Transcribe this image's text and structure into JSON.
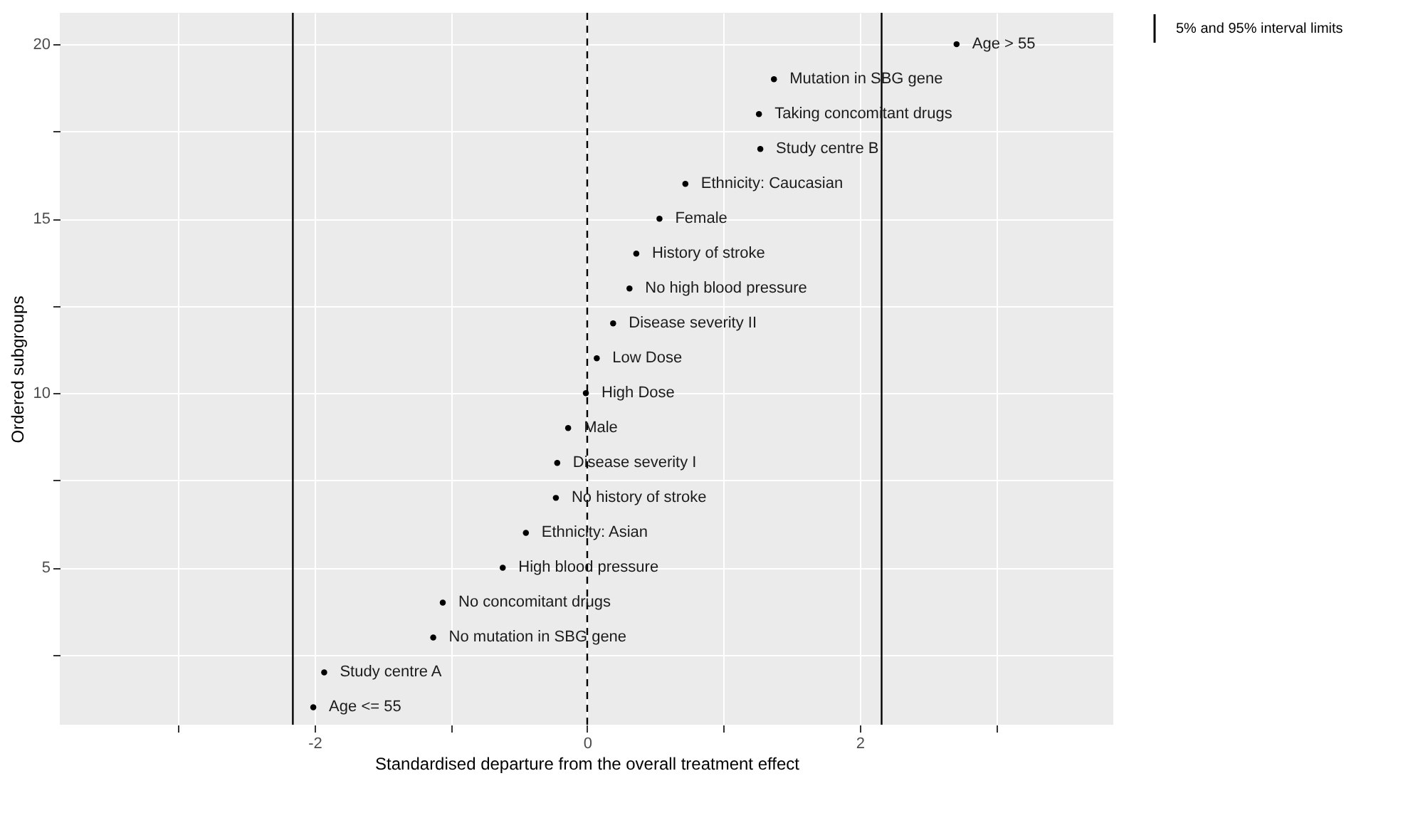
{
  "chart_data": {
    "type": "scatter",
    "xlabel": "Standardised departure from the overall treatment effect",
    "ylabel": "Ordered subgroups",
    "x": [
      -2.01,
      -1.93,
      -1.13,
      -1.06,
      -0.62,
      -0.45,
      -0.23,
      -0.22,
      -0.14,
      -0.01,
      0.07,
      0.19,
      0.31,
      0.36,
      0.53,
      0.72,
      1.27,
      1.26,
      1.37,
      2.71
    ],
    "series": [
      {
        "color": "#000000",
        "values": [
          1,
          2,
          3,
          4,
          5,
          6,
          7,
          8,
          9,
          10,
          11,
          12,
          13,
          14,
          15,
          16,
          17,
          18,
          19,
          20
        ]
      }
    ],
    "xlim": [
      -3.87,
      3.86
    ],
    "xticks": [
      {
        "value": -3,
        "label": null
      },
      -2,
      {
        "value": -1,
        "label": null
      },
      0,
      {
        "value": 1,
        "label": null
      },
      2,
      {
        "value": 3,
        "label": null
      }
    ],
    "ylim": [
      0.5,
      20.9
    ],
    "yticks": [
      {
        "value": 2.5,
        "label": null
      },
      5,
      {
        "value": 7.5,
        "label": null
      },
      10,
      {
        "value": 12.5,
        "label": null
      },
      15,
      {
        "value": 17.5,
        "label": null
      },
      20
    ],
    "grid": true,
    "marker": "circle",
    "legend": "right",
    "ref_lines": [
      {
        "axis": "x",
        "value": 0,
        "line_style": "dashed",
        "color": "#000000"
      },
      {
        "axis": "x",
        "value": -2.16,
        "label": "5% and 95% interval limits",
        "color": "#000000",
        "line_style": "solid"
      },
      {
        "axis": "x",
        "value": 2.16,
        "color": "#000000",
        "line_style": "solid"
      }
    ],
    "annotations": [
      {
        "text": "Age <= 55",
        "x": -2.01,
        "y": 1
      },
      {
        "text": "Study centre A",
        "x": -1.93,
        "y": 2
      },
      {
        "text": "No mutation in SBG gene",
        "x": -1.13,
        "y": 3
      },
      {
        "text": "No concomitant drugs",
        "x": -1.06,
        "y": 4
      },
      {
        "text": "High blood pressure",
        "x": -0.62,
        "y": 5
      },
      {
        "text": "Ethnicity: Asian",
        "x": -0.45,
        "y": 6
      },
      {
        "text": "No history of stroke",
        "x": -0.23,
        "y": 7
      },
      {
        "text": "Disease severity I",
        "x": -0.22,
        "y": 8
      },
      {
        "text": "Male",
        "x": -0.14,
        "y": 9
      },
      {
        "text": "High Dose",
        "x": -0.01,
        "y": 10
      },
      {
        "text": "Low Dose",
        "x": 0.07,
        "y": 11
      },
      {
        "text": "Disease severity II",
        "x": 0.19,
        "y": 12
      },
      {
        "text": "No high blood pressure",
        "x": 0.31,
        "y": 13
      },
      {
        "text": "History of stroke",
        "x": 0.36,
        "y": 14
      },
      {
        "text": "Female",
        "x": 0.53,
        "y": 15
      },
      {
        "text": "Ethnicity: Caucasian",
        "x": 0.72,
        "y": 16
      },
      {
        "text": "Study centre B",
        "x": 1.27,
        "y": 17
      },
      {
        "text": "Taking concomitant drugs",
        "x": 1.26,
        "y": 18
      },
      {
        "text": "Mutation in SBG gene",
        "x": 1.37,
        "y": 19
      },
      {
        "text": "Age > 55",
        "x": 2.71,
        "y": 20
      }
    ]
  }
}
